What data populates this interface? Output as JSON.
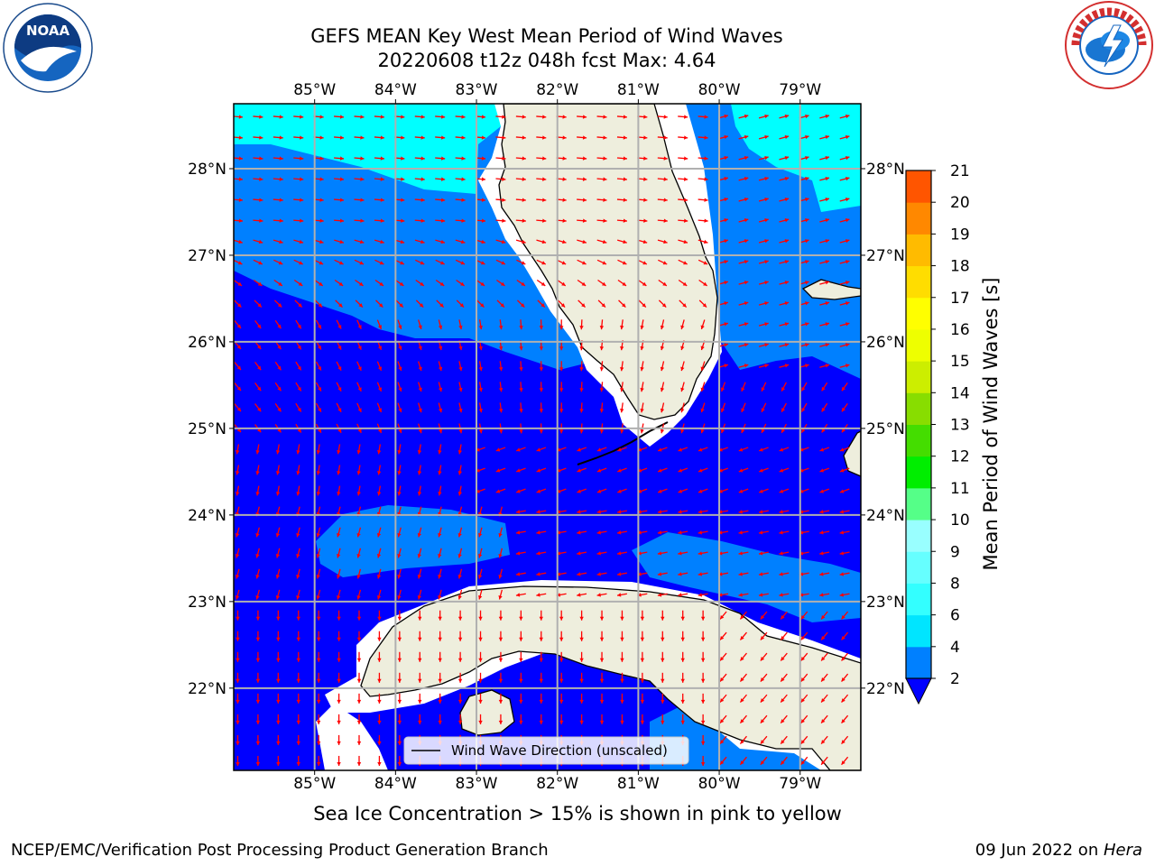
{
  "title_line1": "GEFS MEAN Key West Mean Period of Wind Waves",
  "title_line2": "20220608 t12z 048h fcst   Max: 4.64",
  "logos": {
    "left": "noaa-logo",
    "right": "nws-logo"
  },
  "map": {
    "lon_ticks": [
      "85°W",
      "84°W",
      "83°W",
      "82°W",
      "81°W",
      "80°W",
      "79°W"
    ],
    "lat_ticks": [
      "28°N",
      "27°N",
      "26°N",
      "25°N",
      "24°N",
      "23°N",
      "22°N"
    ],
    "lon_range": [
      -86.0,
      -78.25
    ],
    "lat_range": [
      21.05,
      28.75
    ],
    "legend_label": "Wind Wave Direction (unscaled)",
    "arrow_color": "#ff0000",
    "land_color": "#eeeedd",
    "ocean_colors": {
      "2-4": "#0000ff",
      "4-6": "#0080ff",
      "6-8": "#00ffff"
    }
  },
  "colorbar": {
    "label": "Mean Period of Wind Waves [s]",
    "ticks": [
      2,
      4,
      6,
      8,
      9,
      10,
      11,
      12,
      13,
      14,
      15,
      16,
      17,
      18,
      19,
      20,
      21
    ],
    "colors": [
      "#0080ff",
      "#00e5ff",
      "#33ffff",
      "#66ffff",
      "#99ffff",
      "#55ff88",
      "#00ee00",
      "#44dd00",
      "#88dd00",
      "#ccee00",
      "#eeff00",
      "#ffff00",
      "#ffdd00",
      "#ffbb00",
      "#ff8800",
      "#ff5500",
      "#ff2200",
      "#ff0000"
    ]
  },
  "note": "Sea Ice Concentration > 15% is shown in pink to yellow",
  "footer": {
    "branch": "NCEP/EMC/Verification Post Processing Product Generation Branch",
    "date": "09 Jun 2022 on ",
    "host": "Hera"
  }
}
